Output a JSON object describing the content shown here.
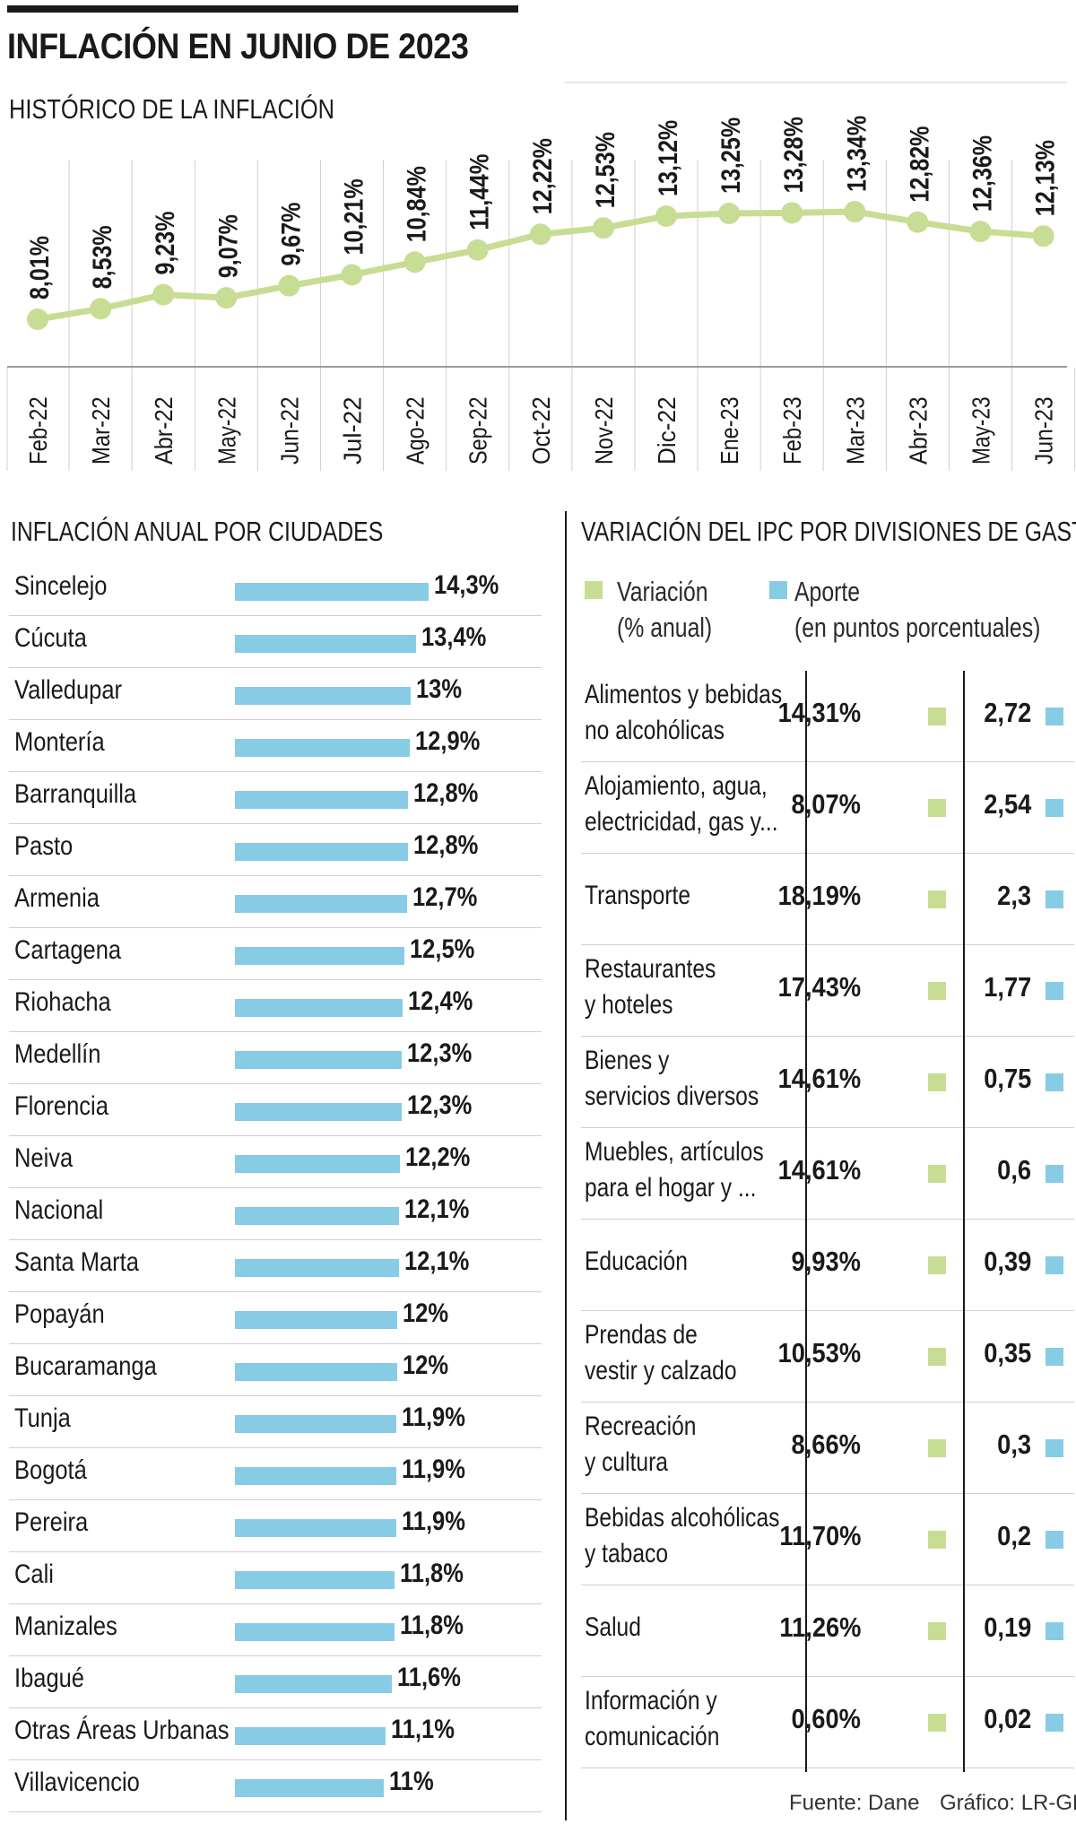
{
  "title": "INFLACIÓN EN JUNIO DE 2023",
  "subtitle": "HISTÓRICO DE LA INFLACIÓN",
  "chart_data": [
    {
      "type": "line",
      "title": "HISTÓRICO DE LA INFLACIÓN",
      "categories": [
        "Feb-22",
        "Mar-22",
        "Abr-22",
        "May-22",
        "Jun-22",
        "Jul-22",
        "Ago-22",
        "Sep-22",
        "Oct-22",
        "Nov-22",
        "Dic-22",
        "Ene-23",
        "Feb-23",
        "Mar-23",
        "Abr-23",
        "May-23",
        "Jun-23"
      ],
      "values": [
        8.01,
        8.53,
        9.23,
        9.07,
        9.67,
        10.21,
        10.84,
        11.44,
        12.22,
        12.53,
        13.12,
        13.25,
        13.28,
        13.34,
        12.82,
        12.36,
        12.13
      ],
      "labels": [
        "8,01%",
        "8,53%",
        "9,23%",
        "9,07%",
        "9,67%",
        "10,21%",
        "10,84%",
        "11,44%",
        "12,22%",
        "12,53%",
        "13,12%",
        "13,25%",
        "13,28%",
        "13,34%",
        "12,82%",
        "12,36%",
        "12,13%"
      ],
      "ylim": [
        8,
        13.5
      ],
      "color": "#c8dd94"
    },
    {
      "type": "bar",
      "title": "INFLACIÓN ANUAL POR CIUDADES",
      "categories": [
        "Sincelejo",
        "Cúcuta",
        "Valledupar",
        "Montería",
        "Barranquilla",
        "Pasto",
        "Armenia",
        "Cartagena",
        "Riohacha",
        "Medellín",
        "Florencia",
        "Neiva",
        "Nacional",
        "Santa Marta",
        "Popayán",
        "Bucaramanga",
        "Tunja",
        "Bogotá",
        "Pereira",
        "Cali",
        "Manizales",
        "Ibagué",
        "Otras Áreas Urbanas",
        "Villavicencio"
      ],
      "values": [
        14.3,
        13.4,
        13,
        12.9,
        12.8,
        12.8,
        12.7,
        12.5,
        12.4,
        12.3,
        12.3,
        12.2,
        12.1,
        12.1,
        12,
        12,
        11.9,
        11.9,
        11.9,
        11.8,
        11.8,
        11.6,
        11.1,
        11
      ],
      "labels": [
        "14,3%",
        "13,4%",
        "13%",
        "12,9%",
        "12,8%",
        "12,8%",
        "12,7%",
        "12,5%",
        "12,4%",
        "12,3%",
        "12,3%",
        "12,2%",
        "12,1%",
        "12,1%",
        "12%",
        "12%",
        "11,9%",
        "11,9%",
        "11,9%",
        "11,8%",
        "11,8%",
        "11,6%",
        "11,1%",
        "11%"
      ],
      "color": "#87cce4"
    },
    {
      "type": "table",
      "title": "VARIACIÓN DEL IPC POR DIVISIONES DE GASTO",
      "legend": [
        {
          "line1": "Variación",
          "line2": "(% anual)",
          "color": "#c8dd94"
        },
        {
          "line1": "Aporte",
          "line2": "(en puntos porcentuales)",
          "color": "#87cce4"
        }
      ],
      "rows": [
        {
          "name1": "Alimentos y bebidas",
          "name2": "no alcohólicas",
          "variacion": "14,31%",
          "aporte": "2,72"
        },
        {
          "name1": "Alojamiento, agua,",
          "name2": "electricidad, gas y...",
          "variacion": "8,07%",
          "aporte": "2,54"
        },
        {
          "name1": "Transporte",
          "name2": "",
          "variacion": "18,19%",
          "aporte": "2,3"
        },
        {
          "name1": "Restaurantes",
          "name2": "y hoteles",
          "variacion": "17,43%",
          "aporte": "1,77"
        },
        {
          "name1": "Bienes y",
          "name2": "servicios diversos",
          "variacion": "14,61%",
          "aporte": "0,75"
        },
        {
          "name1": "Muebles, artículos",
          "name2": "para el hogar y ...",
          "variacion": "14,61%",
          "aporte": "0,6"
        },
        {
          "name1": "Educación",
          "name2": "",
          "variacion": "9,93%",
          "aporte": "0,39"
        },
        {
          "name1": "Prendas de",
          "name2": "vestir y calzado",
          "variacion": "10,53%",
          "aporte": "0,35"
        },
        {
          "name1": "Recreación",
          "name2": "y cultura",
          "variacion": "8,66%",
          "aporte": "0,3"
        },
        {
          "name1": "Bebidas alcohólicas",
          "name2": "y tabaco",
          "variacion": "11,70%",
          "aporte": "0,2"
        },
        {
          "name1": "Salud",
          "name2": "",
          "variacion": "11,26%",
          "aporte": "0,19"
        },
        {
          "name1": "Información y",
          "name2": "comunicación",
          "variacion": "0,60%",
          "aporte": "0,02"
        }
      ]
    }
  ],
  "source": {
    "fuente": "Fuente: Dane",
    "grafico": "Gráfico: LR-GR"
  }
}
